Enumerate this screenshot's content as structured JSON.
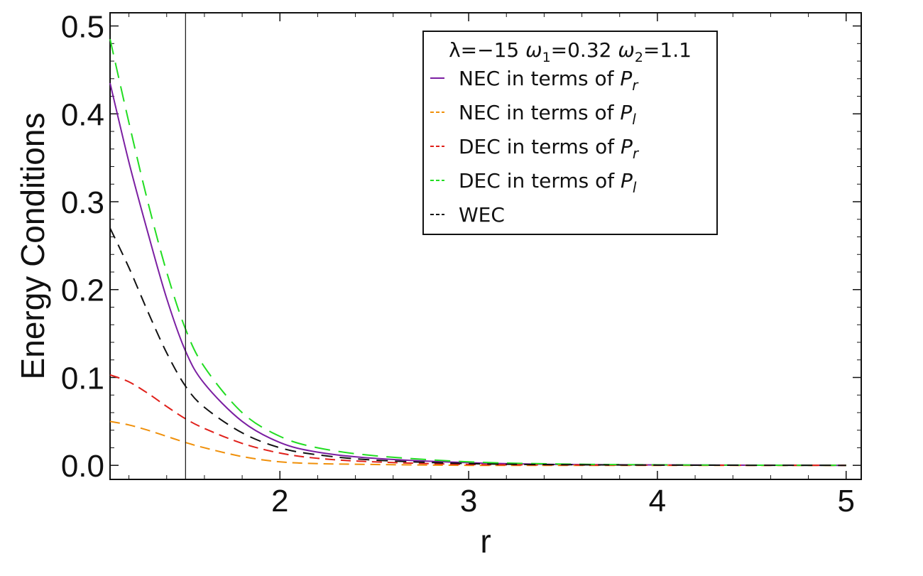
{
  "chart_data": {
    "type": "line",
    "xlabel": "r",
    "ylabel": "Energy Conditions",
    "xlim": [
      1.1,
      5.08
    ],
    "ylim": [
      -0.016,
      0.515
    ],
    "x_ticks": [
      2,
      3,
      4,
      5
    ],
    "x_tick_labels": [
      "2",
      "3",
      "4",
      "5"
    ],
    "y_ticks": [
      0.0,
      0.1,
      0.2,
      0.3,
      0.4,
      0.5
    ],
    "y_tick_labels": [
      "0.0",
      "0.1",
      "0.2",
      "0.3",
      "0.4",
      "0.5"
    ],
    "grid": false,
    "legend_position": "top-right",
    "vertical_line_x": 1.5,
    "legend_title": {
      "lambda": "λ=−15",
      "omega1_symbol": "ω",
      "omega1_sub": "1",
      "omega1_value": "=0.32",
      "omega2_symbol": "ω",
      "omega2_sub": "2",
      "omega2_value": "=1.1"
    },
    "series": [
      {
        "name": "NEC in terms of P_r",
        "label_text": "NEC in terms of ",
        "label_var": "P",
        "label_sub": "r",
        "color": "#7b1fa2",
        "dash": "none",
        "x": [
          1.1,
          1.2,
          1.3,
          1.4,
          1.5,
          1.6,
          1.8,
          2.0,
          2.2,
          2.5,
          3.0,
          3.5,
          4.0,
          4.5,
          5.0
        ],
        "y": [
          0.435,
          0.345,
          0.265,
          0.19,
          0.13,
          0.093,
          0.05,
          0.026,
          0.015,
          0.008,
          0.003,
          0.001,
          0.0005,
          0.0002,
          0.0
        ]
      },
      {
        "name": "NEC in terms of P_l",
        "label_text": "NEC in terms of ",
        "label_var": "P",
        "label_sub": "l",
        "color": "#f0900a",
        "dash": "14,8",
        "x": [
          1.1,
          1.2,
          1.3,
          1.4,
          1.5,
          1.6,
          1.8,
          2.0,
          2.2,
          2.5,
          3.0,
          3.5,
          4.0,
          4.5,
          5.0
        ],
        "y": [
          0.05,
          0.046,
          0.04,
          0.033,
          0.026,
          0.02,
          0.01,
          0.004,
          0.002,
          0.001,
          0.0,
          0.0,
          0.0,
          0.0,
          0.0
        ]
      },
      {
        "name": "DEC in terms of P_r",
        "label_text": "DEC in terms of ",
        "label_var": "P",
        "label_sub": "r",
        "color": "#e0201a",
        "dash": "14,8",
        "x": [
          1.1,
          1.2,
          1.3,
          1.4,
          1.5,
          1.6,
          1.8,
          2.0,
          2.2,
          2.5,
          3.0,
          3.5,
          4.0,
          4.5,
          5.0
        ],
        "y": [
          0.103,
          0.095,
          0.082,
          0.067,
          0.053,
          0.042,
          0.025,
          0.014,
          0.008,
          0.004,
          0.001,
          0.0005,
          0.0002,
          0.0001,
          0.0
        ]
      },
      {
        "name": "DEC in terms of P_l",
        "label_text": "DEC in terms of ",
        "label_var": "P",
        "label_sub": "l",
        "color": "#22dd22",
        "dash": "22,12",
        "x": [
          1.1,
          1.2,
          1.3,
          1.4,
          1.5,
          1.6,
          1.8,
          2.0,
          2.2,
          2.5,
          3.0,
          3.5,
          4.0,
          4.5,
          5.0
        ],
        "y": [
          0.485,
          0.39,
          0.3,
          0.22,
          0.155,
          0.112,
          0.06,
          0.033,
          0.02,
          0.011,
          0.004,
          0.0015,
          0.0006,
          0.0002,
          0.0
        ]
      },
      {
        "name": "WEC",
        "label_text": "WEC",
        "label_var": "",
        "label_sub": "",
        "color": "#111111",
        "dash": "16,10",
        "x": [
          1.1,
          1.2,
          1.3,
          1.4,
          1.5,
          1.6,
          1.8,
          2.0,
          2.2,
          2.5,
          3.0,
          3.5,
          4.0,
          4.5,
          5.0
        ],
        "y": [
          0.27,
          0.225,
          0.175,
          0.128,
          0.09,
          0.066,
          0.037,
          0.02,
          0.012,
          0.006,
          0.002,
          0.0008,
          0.0003,
          0.0001,
          0.0
        ]
      }
    ]
  }
}
